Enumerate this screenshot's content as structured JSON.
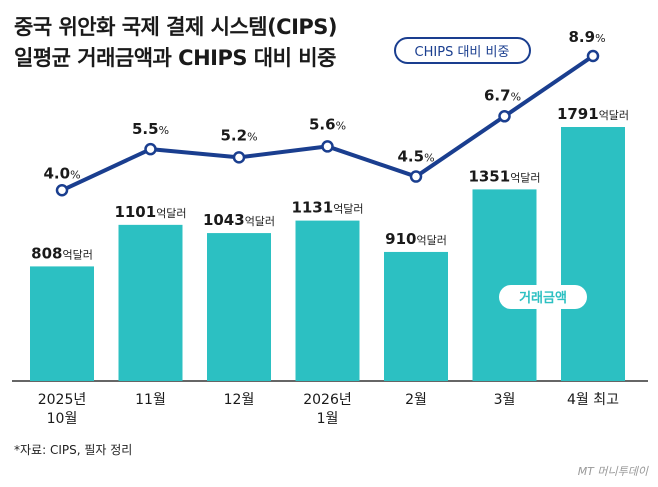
{
  "title_lines": [
    "중국 위안화 국제 결제 시스템(CIPS)",
    "일평균 거래금액과 CHIPS 대비 비중"
  ],
  "source": "*자료: CIPS, 필자 정리",
  "brand": "MT 머니투데이",
  "colors": {
    "bar": "#2cc0c2",
    "line": "#1a3e8f",
    "text": "#1a1a1a"
  },
  "chart_data": {
    "type": "bar",
    "categories": [
      [
        "2025년",
        "10월"
      ],
      [
        "11월"
      ],
      [
        "12월"
      ],
      [
        "2026년",
        "1월"
      ],
      [
        "2월"
      ],
      [
        "3월"
      ],
      [
        "4월 최고"
      ]
    ],
    "series": [
      {
        "name": "거래금액",
        "type": "bar",
        "values": [
          808,
          1101,
          1043,
          1131,
          910,
          1351,
          1791
        ],
        "unit": "억달러"
      },
      {
        "name": "CHIPS 대비 비중",
        "type": "line",
        "values": [
          4.0,
          5.5,
          5.2,
          5.6,
          4.5,
          6.7,
          8.9
        ],
        "unit": "%"
      }
    ],
    "bar_label_unit": "억달러",
    "line_label_unit": "%"
  }
}
